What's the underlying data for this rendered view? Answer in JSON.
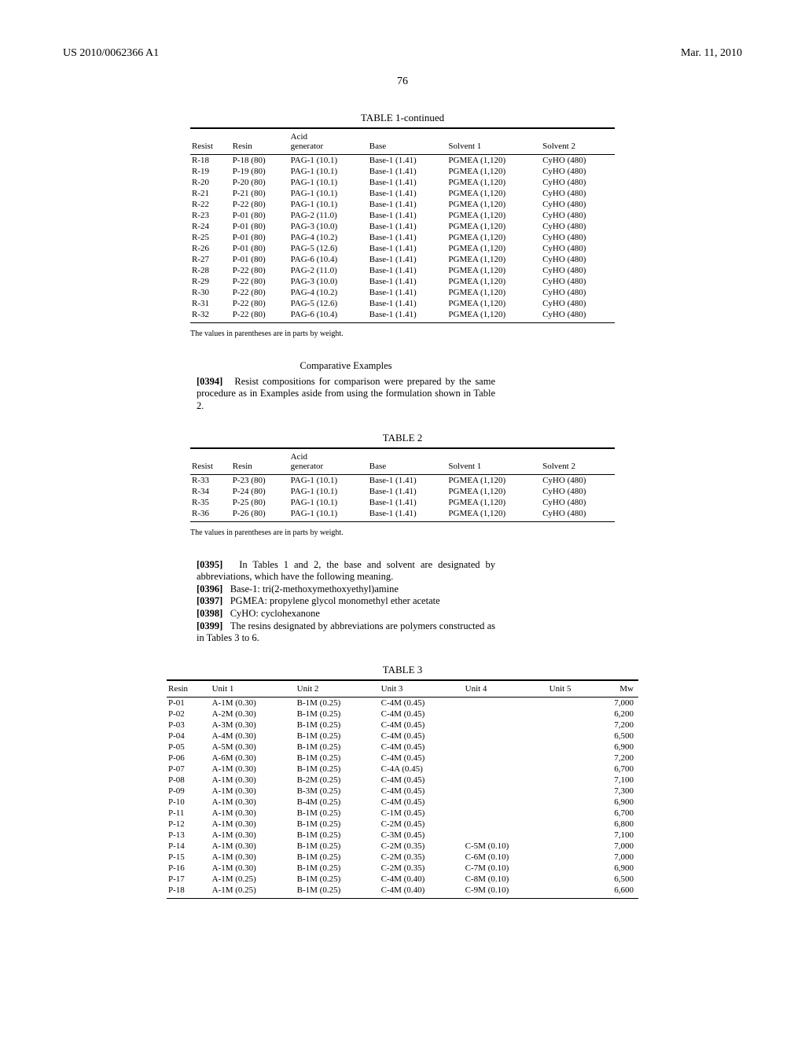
{
  "header": {
    "left": "US 2010/0062366 A1",
    "right": "Mar. 11, 2010"
  },
  "page_number": "76",
  "table1": {
    "title": "TABLE 1-continued",
    "columns": [
      "Resist",
      "Resin",
      "Acid\ngenerator",
      "Base",
      "Solvent 1",
      "Solvent 2"
    ],
    "rows": [
      [
        "R-18",
        "P-18 (80)",
        "PAG-1 (10.1)",
        "Base-1 (1.41)",
        "PGMEA (1,120)",
        "CyHO (480)"
      ],
      [
        "R-19",
        "P-19 (80)",
        "PAG-1 (10.1)",
        "Base-1 (1.41)",
        "PGMEA (1,120)",
        "CyHO (480)"
      ],
      [
        "R-20",
        "P-20 (80)",
        "PAG-1 (10.1)",
        "Base-1 (1.41)",
        "PGMEA (1,120)",
        "CyHO (480)"
      ],
      [
        "R-21",
        "P-21 (80)",
        "PAG-1 (10.1)",
        "Base-1 (1.41)",
        "PGMEA (1,120)",
        "CyHO (480)"
      ],
      [
        "R-22",
        "P-22 (80)",
        "PAG-1 (10.1)",
        "Base-1 (1.41)",
        "PGMEA (1,120)",
        "CyHO (480)"
      ],
      [
        "R-23",
        "P-01 (80)",
        "PAG-2 (11.0)",
        "Base-1 (1.41)",
        "PGMEA (1,120)",
        "CyHO (480)"
      ],
      [
        "R-24",
        "P-01 (80)",
        "PAG-3 (10.0)",
        "Base-1 (1.41)",
        "PGMEA (1,120)",
        "CyHO (480)"
      ],
      [
        "R-25",
        "P-01 (80)",
        "PAG-4 (10.2)",
        "Base-1 (1.41)",
        "PGMEA (1,120)",
        "CyHO (480)"
      ],
      [
        "R-26",
        "P-01 (80)",
        "PAG-5 (12.6)",
        "Base-1 (1.41)",
        "PGMEA (1,120)",
        "CyHO (480)"
      ],
      [
        "R-27",
        "P-01 (80)",
        "PAG-6 (10.4)",
        "Base-1 (1.41)",
        "PGMEA (1,120)",
        "CyHO (480)"
      ],
      [
        "R-28",
        "P-22 (80)",
        "PAG-2 (11.0)",
        "Base-1 (1.41)",
        "PGMEA (1,120)",
        "CyHO (480)"
      ],
      [
        "R-29",
        "P-22 (80)",
        "PAG-3 (10.0)",
        "Base-1 (1.41)",
        "PGMEA (1,120)",
        "CyHO (480)"
      ],
      [
        "R-30",
        "P-22 (80)",
        "PAG-4 (10.2)",
        "Base-1 (1.41)",
        "PGMEA (1,120)",
        "CyHO (480)"
      ],
      [
        "R-31",
        "P-22 (80)",
        "PAG-5 (12.6)",
        "Base-1 (1.41)",
        "PGMEA (1,120)",
        "CyHO (480)"
      ],
      [
        "R-32",
        "P-22 (80)",
        "PAG-6 (10.4)",
        "Base-1 (1.41)",
        "PGMEA (1,120)",
        "CyHO (480)"
      ]
    ],
    "footnote": "The values in parentheses are in parts by weight."
  },
  "comparative": {
    "title": "Comparative Examples",
    "para_num": "[0394]",
    "para_text": "Resist compositions for comparison were prepared by the same procedure as in Examples aside from using the formulation shown in Table 2."
  },
  "table2": {
    "title": "TABLE 2",
    "columns": [
      "Resist",
      "Resin",
      "Acid\ngenerator",
      "Base",
      "Solvent 1",
      "Solvent 2"
    ],
    "rows": [
      [
        "R-33",
        "P-23 (80)",
        "PAG-1 (10.1)",
        "Base-1 (1.41)",
        "PGMEA (1,120)",
        "CyHO (480)"
      ],
      [
        "R-34",
        "P-24 (80)",
        "PAG-1 (10.1)",
        "Base-1 (1.41)",
        "PGMEA (1,120)",
        "CyHO (480)"
      ],
      [
        "R-35",
        "P-25 (80)",
        "PAG-1 (10.1)",
        "Base-1 (1.41)",
        "PGMEA (1,120)",
        "CyHO (480)"
      ],
      [
        "R-36",
        "P-26 (80)",
        "PAG-1 (10.1)",
        "Base-1 (1.41)",
        "PGMEA (1,120)",
        "CyHO (480)"
      ]
    ],
    "footnote": "The values in parentheses are in parts by weight."
  },
  "defs": {
    "p0395_num": "[0395]",
    "p0395": "In Tables 1 and 2, the base and solvent are designated by abbreviations, which have the following meaning.",
    "p0396_num": "[0396]",
    "p0396": "Base-1: tri(2-methoxymethoxyethyl)amine",
    "p0397_num": "[0397]",
    "p0397": "PGMEA: propylene glycol monomethyl ether acetate",
    "p0398_num": "[0398]",
    "p0398": "CyHO: cyclohexanone",
    "p0399_num": "[0399]",
    "p0399": "The resins designated by abbreviations are polymers constructed as in Tables 3 to 6."
  },
  "table3": {
    "title": "TABLE 3",
    "columns": [
      "Resin",
      "Unit 1",
      "Unit 2",
      "Unit 3",
      "Unit 4",
      "Unit 5",
      "Mw"
    ],
    "rows": [
      [
        "P-01",
        "A-1M (0.30)",
        "B-1M (0.25)",
        "C-4M (0.45)",
        "",
        "",
        "7,000"
      ],
      [
        "P-02",
        "A-2M (0.30)",
        "B-1M (0.25)",
        "C-4M (0.45)",
        "",
        "",
        "6,200"
      ],
      [
        "P-03",
        "A-3M (0.30)",
        "B-1M (0.25)",
        "C-4M (0.45)",
        "",
        "",
        "7,200"
      ],
      [
        "P-04",
        "A-4M (0.30)",
        "B-1M (0.25)",
        "C-4M (0.45)",
        "",
        "",
        "6,500"
      ],
      [
        "P-05",
        "A-5M (0.30)",
        "B-1M (0.25)",
        "C-4M (0.45)",
        "",
        "",
        "6,900"
      ],
      [
        "P-06",
        "A-6M (0.30)",
        "B-1M (0.25)",
        "C-4M (0.45)",
        "",
        "",
        "7,200"
      ],
      [
        "P-07",
        "A-1M (0.30)",
        "B-1M (0.25)",
        "C-4A (0.45)",
        "",
        "",
        "6,700"
      ],
      [
        "P-08",
        "A-1M (0.30)",
        "B-2M (0.25)",
        "C-4M (0.45)",
        "",
        "",
        "7,100"
      ],
      [
        "P-09",
        "A-1M (0.30)",
        "B-3M (0.25)",
        "C-4M (0.45)",
        "",
        "",
        "7,300"
      ],
      [
        "P-10",
        "A-1M (0.30)",
        "B-4M (0.25)",
        "C-4M (0.45)",
        "",
        "",
        "6,900"
      ],
      [
        "P-11",
        "A-1M (0.30)",
        "B-1M (0.25)",
        "C-1M (0.45)",
        "",
        "",
        "6,700"
      ],
      [
        "P-12",
        "A-1M (0.30)",
        "B-1M (0.25)",
        "C-2M (0.45)",
        "",
        "",
        "6,800"
      ],
      [
        "P-13",
        "A-1M (0.30)",
        "B-1M (0.25)",
        "C-3M (0.45)",
        "",
        "",
        "7,100"
      ],
      [
        "P-14",
        "A-1M (0.30)",
        "B-1M (0.25)",
        "C-2M (0.35)",
        "C-5M (0.10)",
        "",
        "7,000"
      ],
      [
        "P-15",
        "A-1M (0.30)",
        "B-1M (0.25)",
        "C-2M (0.35)",
        "C-6M (0.10)",
        "",
        "7,000"
      ],
      [
        "P-16",
        "A-1M (0.30)",
        "B-1M (0.25)",
        "C-2M (0.35)",
        "C-7M (0.10)",
        "",
        "6,900"
      ],
      [
        "P-17",
        "A-1M (0.25)",
        "B-1M (0.25)",
        "C-4M (0.40)",
        "C-8M (0.10)",
        "",
        "6,500"
      ],
      [
        "P-18",
        "A-1M (0.25)",
        "B-1M (0.25)",
        "C-4M (0.40)",
        "C-9M (0.10)",
        "",
        "6,600"
      ]
    ]
  }
}
